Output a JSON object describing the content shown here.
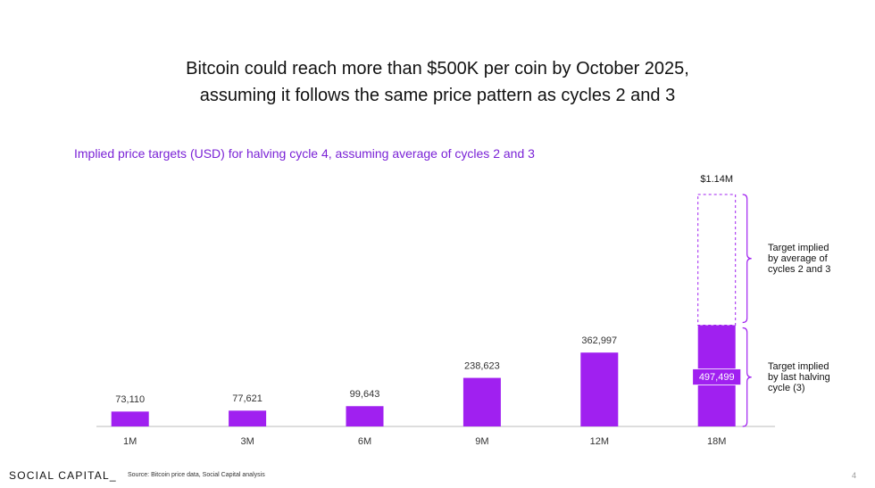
{
  "header": {
    "title": "Bitcoin could reach more than $500K per coin by October 2025, assuming it follows the same price pattern as cycles 2 and 3"
  },
  "chart_data": {
    "type": "bar",
    "subtitle": "Implied price targets (USD) for halving cycle 4, assuming average of cycles 2 and 3",
    "categories": [
      "1M",
      "3M",
      "6M",
      "9M",
      "12M",
      "18M"
    ],
    "values": [
      73110,
      77621,
      99643,
      238623,
      362997,
      497499
    ],
    "value_labels": [
      "73,110",
      "77,621",
      "99,643",
      "238,623",
      "362,997",
      "497,499"
    ],
    "color": "#a020f0",
    "target": {
      "value": 1140000,
      "label": "$1.14M"
    },
    "annotations": [
      "Target implied by average of cycles 2 and 3",
      "Target implied by last halving cycle (3)"
    ]
  },
  "footer": {
    "brand": "SOCIAL CAPITAL_",
    "source": "Source: Bitcoin price data, Social Capital analysis",
    "page": "4"
  }
}
